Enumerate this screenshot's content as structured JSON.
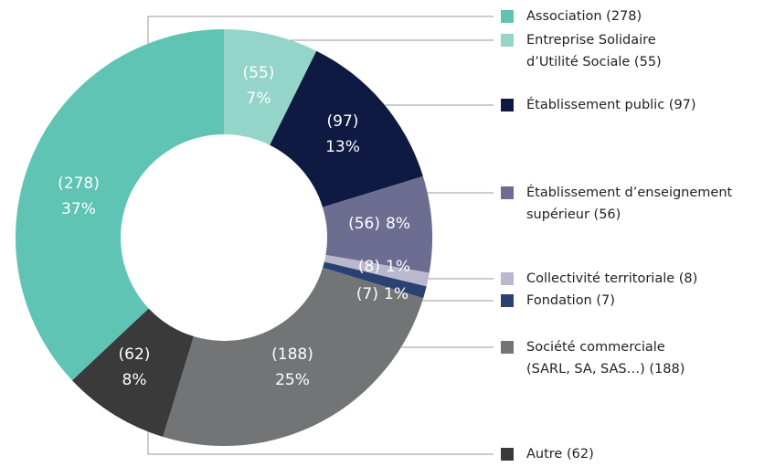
{
  "chart_data": {
    "type": "donut",
    "categories": [
      [
        "Entreprise Solidaire",
        "d’Utilité Sociale (55)"
      ],
      [
        "Établissement public (97)"
      ],
      [
        "Établissement d’enseignement",
        "supérieur (56)"
      ],
      [
        "Collectivité territoriale (8)"
      ],
      [
        "Fondation (7)"
      ],
      [
        "Société commerciale",
        "(SARL, SA, SAS…) (188)"
      ],
      [
        "Autre (62)"
      ],
      [
        "Association (278)"
      ]
    ],
    "values": [
      55,
      97,
      56,
      8,
      7,
      188,
      62,
      278
    ],
    "value_labels": [
      "(55)",
      "(97)",
      "(56)",
      "(8)",
      "(7)",
      "(188)",
      "(62)",
      "(278)"
    ],
    "percent_labels": [
      "7%",
      "13%",
      "8%",
      "1%",
      "1%",
      "25%",
      "8%",
      "37%"
    ],
    "colors": [
      "#95d5c9",
      "#0f1a42",
      "#6d6d92",
      "#b9b8cf",
      "#2a4273",
      "#737476",
      "#3a3a3a",
      "#5fc4b4"
    ]
  }
}
